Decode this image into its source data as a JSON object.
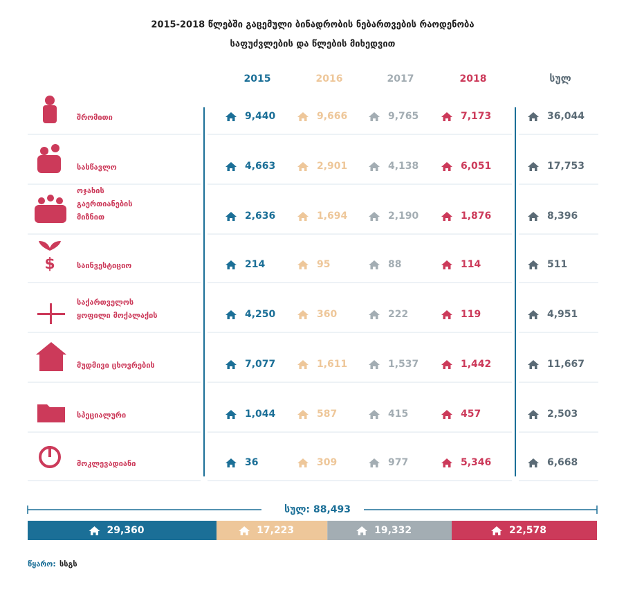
{
  "header": {
    "title": [
      "2015-2018 წლებში გაცემული ბინადრობის ნებართვების რაოდენობა",
      "საფუძვლების და წლების მიხედვით"
    ]
  },
  "table": {
    "columns": [
      {
        "label": "2015",
        "color": "#1b6f97"
      },
      {
        "label": "2016",
        "color": "#eec79a"
      },
      {
        "label": "2017",
        "color": "#a3adb3"
      },
      {
        "label": "2018",
        "color": "#cc3a5a"
      },
      {
        "label": "სულ",
        "color": "#5b6b76"
      }
    ],
    "rows": [
      {
        "label": [
          "შრომითი"
        ],
        "values": [
          "9,440",
          "9,666",
          "9,765",
          "7,173",
          "36,044"
        ]
      },
      {
        "label": [
          "სასწავლო"
        ],
        "values": [
          "4,663",
          "2,901",
          "4,138",
          "6,051",
          "17,753"
        ]
      },
      {
        "label": [
          "ოჯახის",
          "გაერთიანების",
          "მიზნით"
        ],
        "values": [
          "2,636",
          "1,694",
          "2,190",
          "1,876",
          "8,396"
        ]
      },
      {
        "label": [
          "საინვესტიციო"
        ],
        "values": [
          "214",
          "95",
          "88",
          "114",
          "511"
        ]
      },
      {
        "label": [
          "საქართველოს",
          "ყოფილი მოქალაქის"
        ],
        "values": [
          "4,250",
          "360",
          "222",
          "119",
          "4,951"
        ]
      },
      {
        "label": [
          "მუდმივი ცხოვრების"
        ],
        "values": [
          "7,077",
          "1,611",
          "1,537",
          "1,442",
          "11,667"
        ]
      },
      {
        "label": [
          "სპეციალური"
        ],
        "values": [
          "1,044",
          "587",
          "415",
          "457",
          "2,503"
        ]
      },
      {
        "label": [
          "მოკლევადიანი"
        ],
        "values": [
          "36",
          "309",
          "977",
          "5,346",
          "6,668"
        ]
      }
    ]
  },
  "total": {
    "label": "სულ:",
    "value": "88,493",
    "segments": [
      {
        "value": 29360,
        "label": "29,360"
      },
      {
        "value": 17223,
        "label": "17,223"
      },
      {
        "value": 19332,
        "label": "19,332"
      },
      {
        "value": 22578,
        "label": "22,578"
      }
    ]
  },
  "source": {
    "label": "წყარო:",
    "value": "სსგს"
  }
}
